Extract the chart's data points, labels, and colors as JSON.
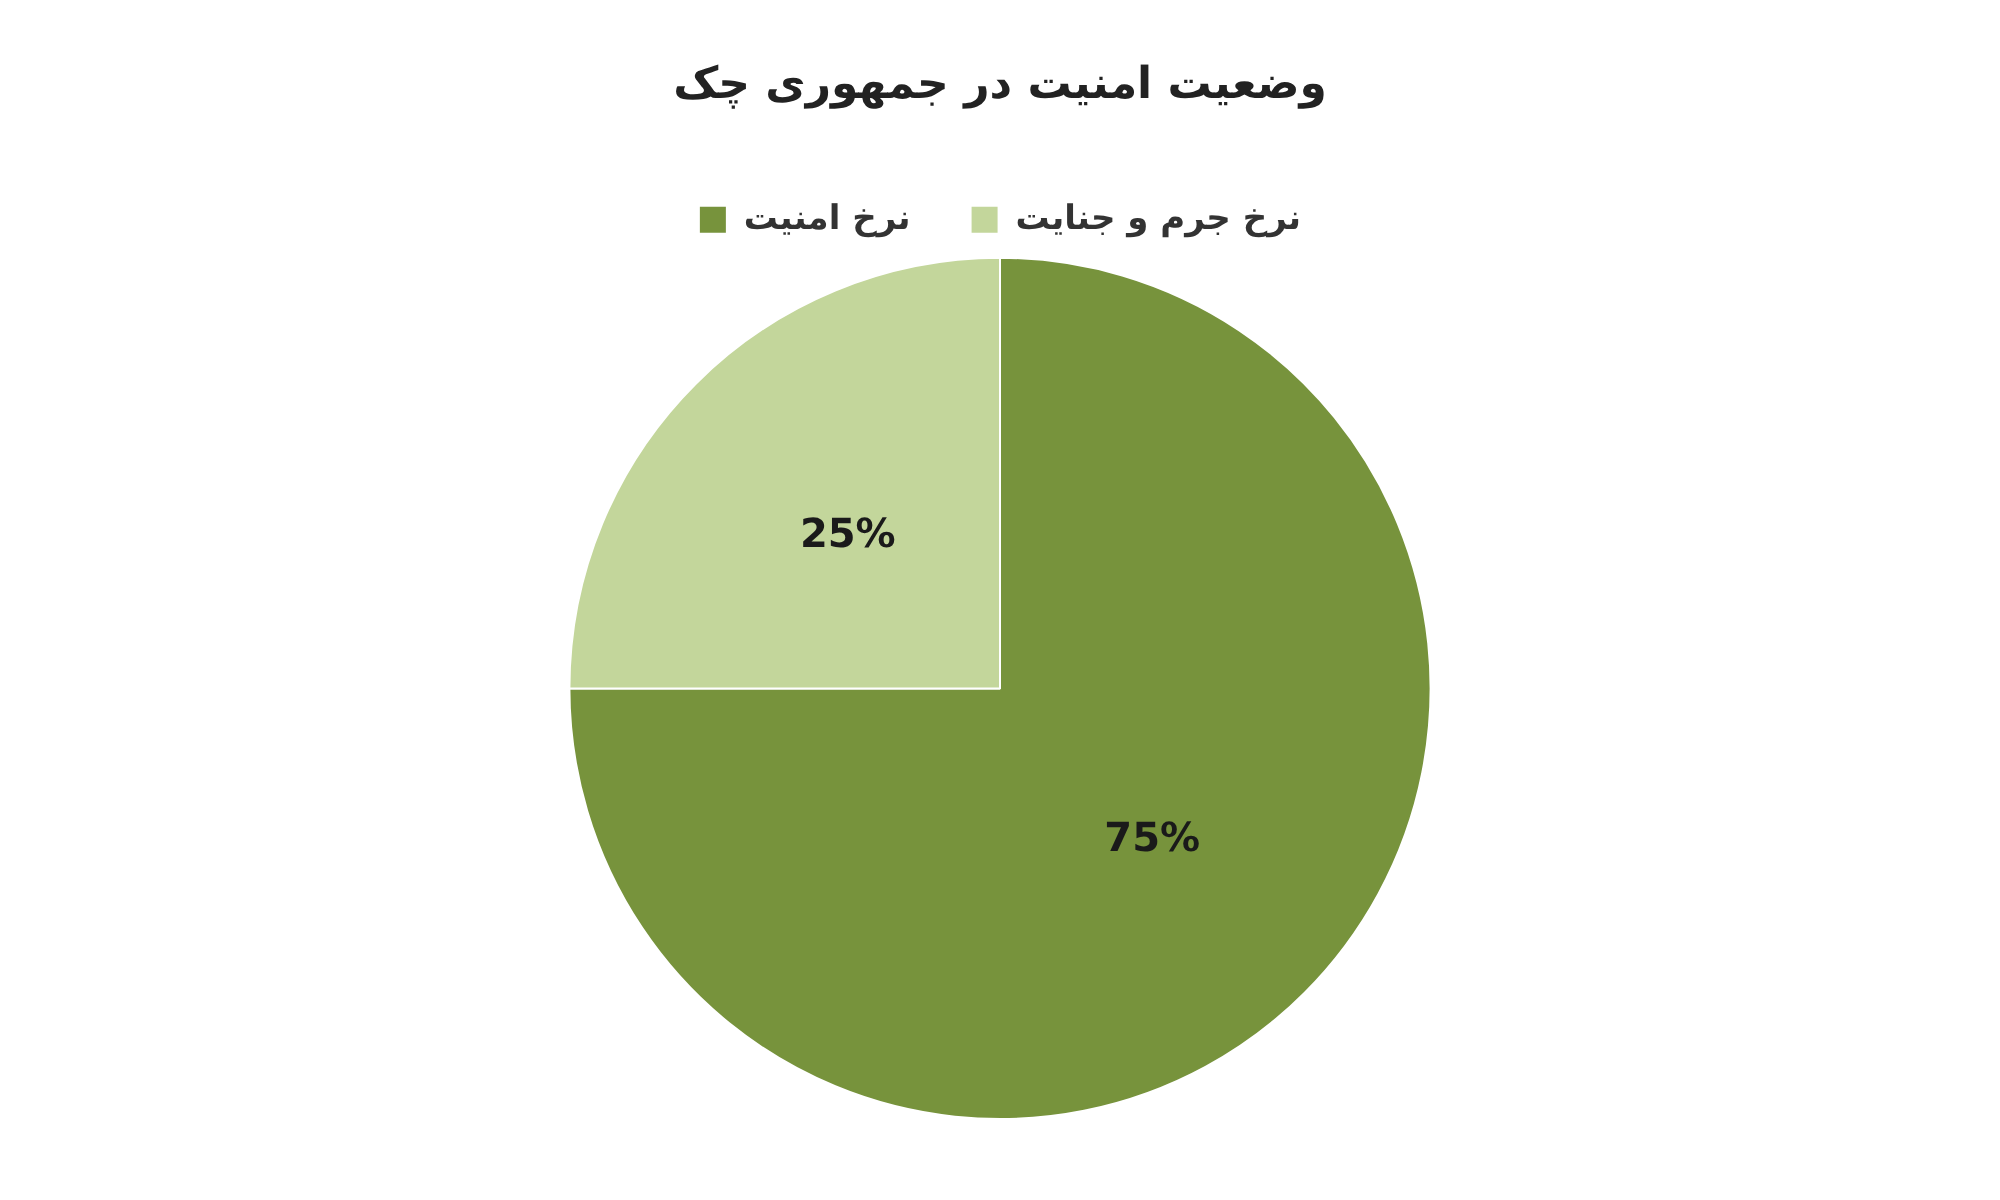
{
  "chart_data": {
    "type": "pie",
    "title": "وضعیت امنیت در جمهوری چک",
    "categories": [
      "نرخ امنیت",
      "نرخ جرم و جنایت"
    ],
    "values": [
      75,
      25
    ],
    "colors": [
      "#77933c",
      "#c3d69b"
    ],
    "value_labels": [
      "75%",
      "25%"
    ],
    "legend": "top"
  }
}
